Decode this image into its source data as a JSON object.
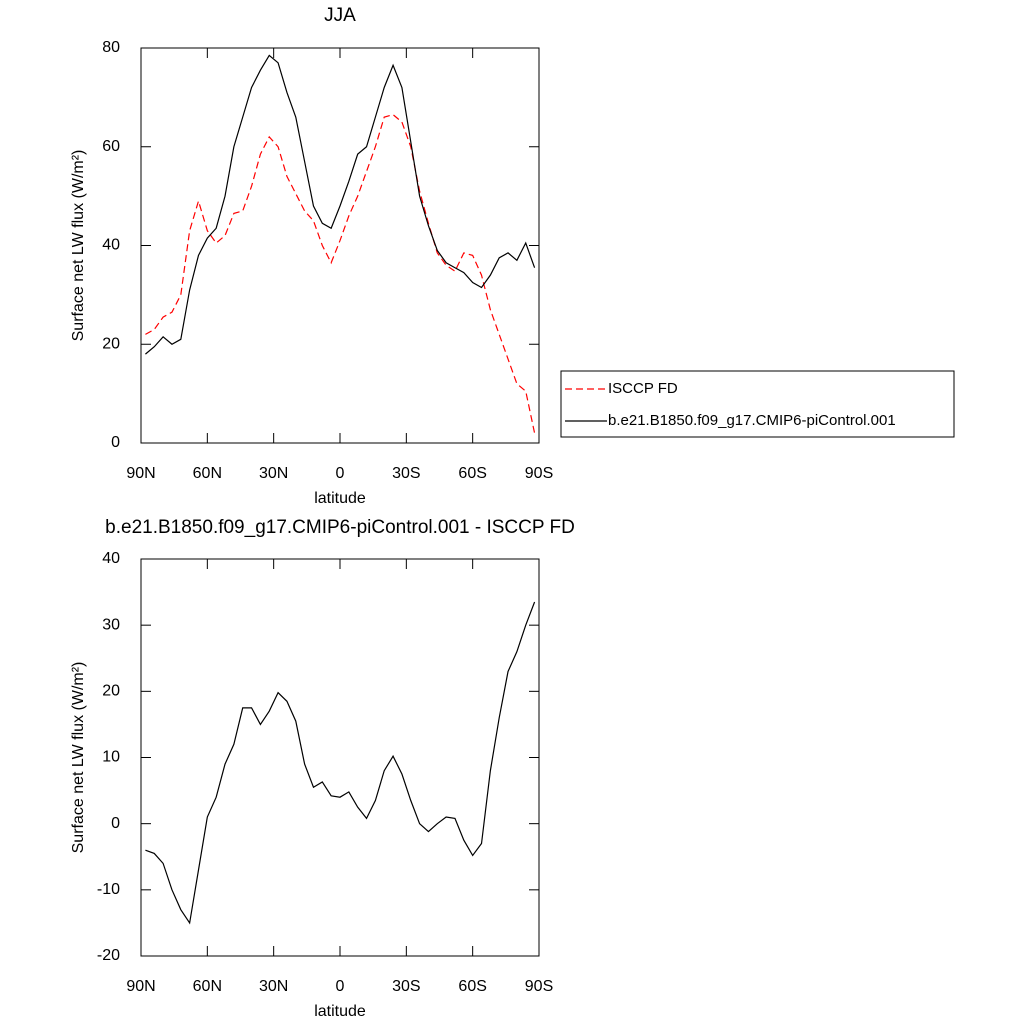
{
  "chart_data": [
    {
      "type": "line",
      "title": "JJA",
      "xlabel": "latitude",
      "ylabel": "Surface net LW flux (W/m²)",
      "x": [
        88,
        84,
        80,
        76,
        72,
        68,
        64,
        60,
        56,
        52,
        48,
        44,
        40,
        36,
        32,
        28,
        24,
        20,
        16,
        12,
        8,
        4,
        0,
        -4,
        -8,
        -12,
        -16,
        -20,
        -24,
        -28,
        -32,
        -36,
        -40,
        -44,
        -48,
        -52,
        -56,
        -60,
        -64,
        -68,
        -72,
        -76,
        -80,
        -84,
        -88
      ],
      "series": [
        {
          "name": "ISCCP FD",
          "color": "#ff0000",
          "line_style": "dashed",
          "values": [
            22,
            23,
            25.5,
            26.5,
            30,
            43,
            49,
            43,
            40.5,
            42,
            46.5,
            47,
            52,
            58.5,
            62,
            60,
            54,
            50.5,
            47,
            45,
            40,
            36.5,
            41,
            46,
            50,
            55,
            60,
            66,
            66.5,
            65,
            60,
            51,
            44.5,
            38.5,
            36,
            34.8,
            38.5,
            38,
            34,
            27,
            22,
            17,
            12,
            10.5,
            2
          ]
        },
        {
          "name": "b.e21.B1850.f09_g17.CMIP6-piControl.001",
          "color": "#000000",
          "line_style": "solid",
          "values": [
            18,
            19.5,
            21.5,
            20,
            21,
            31,
            38,
            41.5,
            43.5,
            50,
            60,
            66,
            72,
            75.5,
            78.5,
            77,
            71,
            66,
            57,
            48,
            44.5,
            43.5,
            48,
            53,
            58.5,
            60,
            66,
            72,
            76.5,
            72,
            61,
            50,
            44,
            39,
            36.5,
            35.5,
            34.5,
            32.5,
            31.5,
            34,
            37.5,
            38.5,
            37,
            40.5,
            35.5
          ]
        }
      ],
      "xlim": [
        90,
        -90
      ],
      "xticks": [
        {
          "value": 90,
          "label": "90N"
        },
        {
          "value": 60,
          "label": "60N"
        },
        {
          "value": 30,
          "label": "30N"
        },
        0,
        {
          "value": -30,
          "label": "30S"
        },
        {
          "value": -60,
          "label": "60S"
        },
        {
          "value": -90,
          "label": "90S"
        }
      ],
      "ylim": [
        0,
        80
      ],
      "yticks": [
        0,
        20,
        40,
        60,
        80
      ],
      "legend": "right"
    },
    {
      "type": "line",
      "title": "b.e21.B1850.f09_g17.CMIP6-piControl.001 - ISCCP FD",
      "xlabel": "latitude",
      "ylabel": "Surface net LW flux (W/m²)",
      "x": [
        88,
        84,
        80,
        76,
        72,
        68,
        64,
        60,
        56,
        52,
        48,
        44,
        40,
        36,
        32,
        28,
        24,
        20,
        16,
        12,
        8,
        4,
        0,
        -4,
        -8,
        -12,
        -16,
        -20,
        -24,
        -28,
        -32,
        -36,
        -40,
        -44,
        -48,
        -52,
        -56,
        -60,
        -64,
        -68,
        -72,
        -76,
        -80,
        -84,
        -88
      ],
      "series": [
        {
          "color": "#000000",
          "line_style": "solid",
          "values": [
            -4,
            -4.5,
            -6,
            -10,
            -13,
            -15,
            -7,
            1,
            4,
            9,
            12,
            17.5,
            17.5,
            15,
            17,
            19.8,
            18.5,
            15.5,
            9,
            5.5,
            6.3,
            4.2,
            4,
            4.8,
            2.5,
            0.8,
            3.5,
            8,
            10.2,
            7.5,
            3.5,
            0,
            -1.2,
            0,
            1,
            0.8,
            -2.5,
            -4.8,
            -3,
            8,
            16,
            23,
            26,
            30,
            33.5
          ]
        }
      ],
      "xlim": [
        90,
        -90
      ],
      "xticks": [
        {
          "value": 90,
          "label": "90N"
        },
        {
          "value": 60,
          "label": "60N"
        },
        {
          "value": 30,
          "label": "30N"
        },
        0,
        {
          "value": -30,
          "label": "30S"
        },
        {
          "value": -60,
          "label": "60S"
        },
        {
          "value": -90,
          "label": "90S"
        }
      ],
      "ylim": [
        -20,
        40
      ],
      "yticks": [
        -20,
        -10,
        0,
        10,
        20,
        30,
        40
      ]
    }
  ]
}
